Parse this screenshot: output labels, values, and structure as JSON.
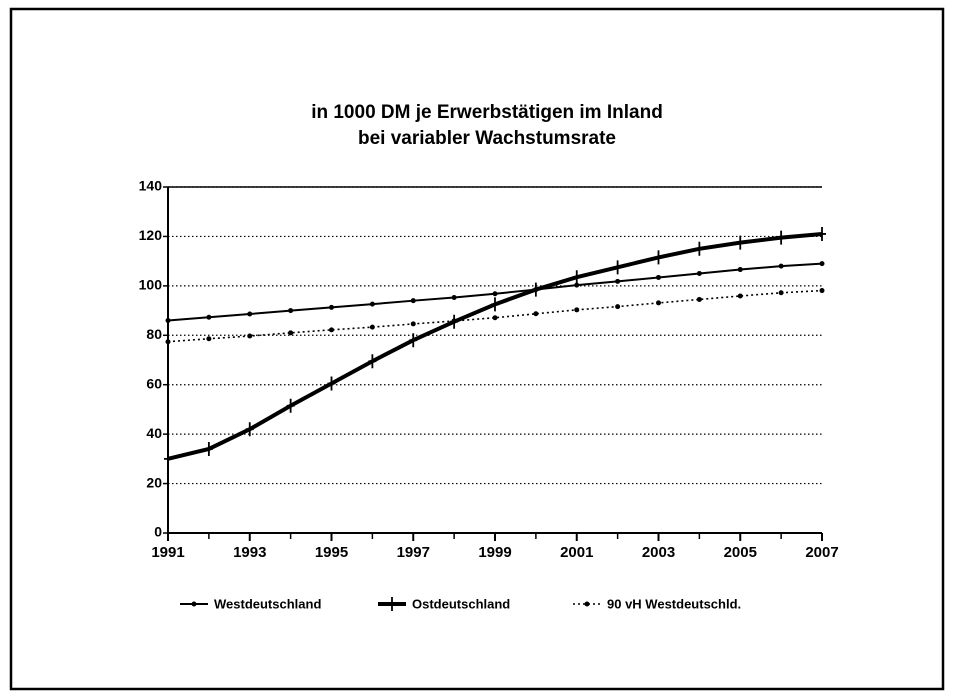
{
  "chart_data": {
    "type": "line",
    "title": "in 1000 DM je Erwerbstätigen im Inland",
    "subtitle": "bei variabler Wachstumsrate",
    "x": [
      1991,
      1992,
      1993,
      1994,
      1995,
      1996,
      1997,
      1998,
      1999,
      2000,
      2001,
      2002,
      2003,
      2004,
      2005,
      2006,
      2007
    ],
    "series": [
      {
        "name": "Westdeutschland",
        "color": "#000000",
        "line_style": "solid",
        "marker": "dot",
        "values": [
          86,
          87.3,
          88.6,
          90,
          91.3,
          92.6,
          94,
          95.3,
          96.8,
          98.5,
          100.3,
          101.8,
          103.4,
          105,
          106.6,
          108,
          109
        ]
      },
      {
        "name": "Ostdeutschland",
        "color": "#000000",
        "line_style": "thick",
        "marker": "plus",
        "values": [
          30,
          34,
          42,
          51.5,
          60.5,
          69.5,
          78,
          85.5,
          92.5,
          98.5,
          103.5,
          107.5,
          111.5,
          115,
          117.5,
          119.5,
          121
        ]
      },
      {
        "name": "90 vH Westdeutschld.",
        "color": "#000000",
        "line_style": "dotted",
        "marker": "dot",
        "values": [
          77.4,
          78.6,
          79.7,
          81,
          82.2,
          83.3,
          84.6,
          85.8,
          87.1,
          88.7,
          90.3,
          91.6,
          93.1,
          94.5,
          95.9,
          97.2,
          98.1
        ]
      }
    ],
    "xlim": [
      1991,
      2007
    ],
    "xticks": [
      1991,
      1993,
      1995,
      1997,
      1999,
      2001,
      2003,
      2005,
      2007
    ],
    "ylim": [
      0,
      140
    ],
    "yticks": [
      0,
      20,
      40,
      60,
      80,
      100,
      120,
      140
    ],
    "grid": true,
    "legend": "bottom"
  }
}
